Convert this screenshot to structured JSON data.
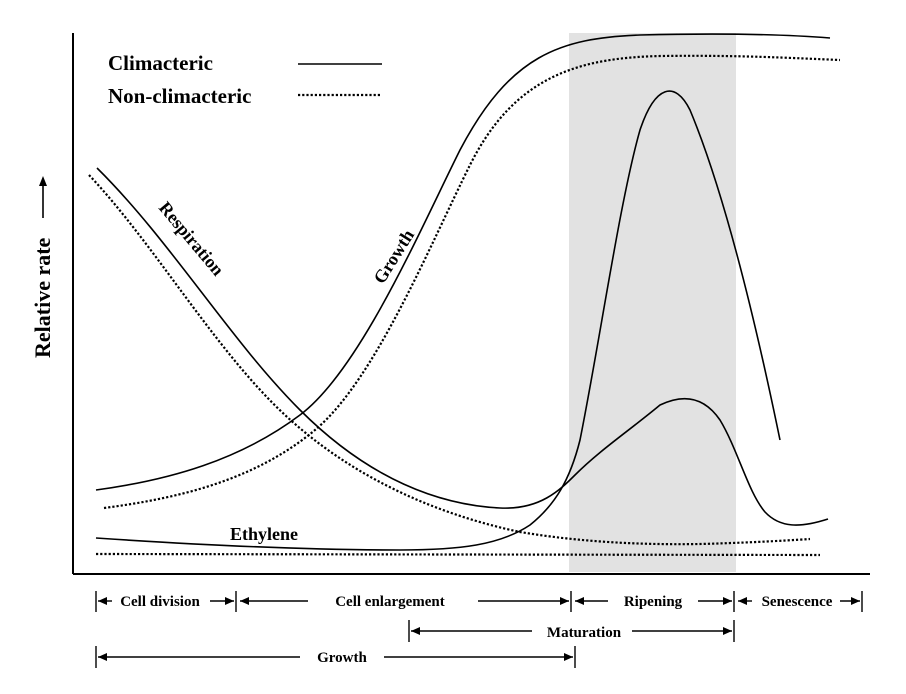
{
  "legend": {
    "climacteric_label": "Climacteric",
    "non_climacteric_label": "Non-climacteric"
  },
  "axis": {
    "y_label": "Relative rate"
  },
  "curve_labels": {
    "respiration": "Respiration",
    "growth": "Growth",
    "ethylene": "Ethylene"
  },
  "phases": {
    "cell_division": "Cell division",
    "cell_enlargement": "Cell enlargement",
    "ripening": "Ripening",
    "senescence": "Senescence",
    "maturation": "Maturation",
    "growth": "Growth"
  },
  "colors": {
    "line": "#000000",
    "ripening_band": "#e2e2e2"
  }
}
